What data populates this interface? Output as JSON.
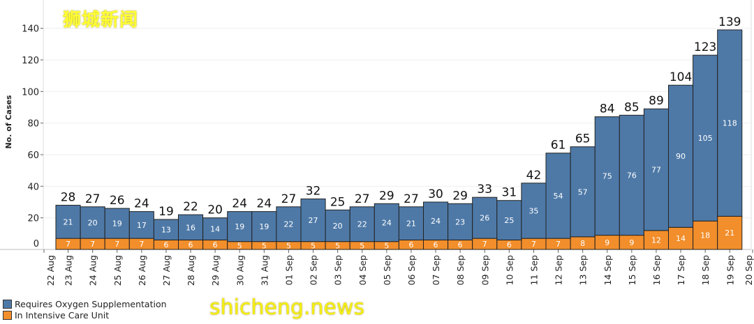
{
  "chart_data": {
    "type": "bar",
    "stacked": true,
    "ylabel": "No. of Cases",
    "xlabel": "",
    "ylim": [
      0,
      145
    ],
    "yticks": [
      0,
      20,
      40,
      60,
      80,
      100,
      120,
      140
    ],
    "grid": "horizontal",
    "legend_placement": "bottom-left",
    "axis_tick_labels": [
      "22 Aug",
      "23 Aug",
      "24 Aug",
      "25 Aug",
      "26 Aug",
      "27 Aug",
      "28 Aug",
      "29 Aug",
      "30 Aug",
      "31 Aug",
      "01 Sep",
      "02 Sep",
      "03 Sep",
      "04 Sep",
      "05 Sep",
      "06 Sep",
      "07 Sep",
      "08 Sep",
      "09 Sep",
      "10 Sep",
      "11 Sep",
      "12 Sep",
      "13 Sep",
      "14 Sep",
      "15 Sep",
      "16 Sep",
      "17 Sep",
      "18 Sep",
      "19 Sep",
      "20 Sep"
    ],
    "categories": [
      "23 Aug",
      "24 Aug",
      "25 Aug",
      "26 Aug",
      "27 Aug",
      "28 Aug",
      "29 Aug",
      "30 Aug",
      "31 Aug",
      "01 Sep",
      "02 Sep",
      "03 Sep",
      "04 Sep",
      "05 Sep",
      "06 Sep",
      "07 Sep",
      "08 Sep",
      "09 Sep",
      "10 Sep",
      "11 Sep",
      "12 Sep",
      "13 Sep",
      "14 Sep",
      "15 Sep",
      "16 Sep",
      "17 Sep",
      "18 Sep",
      "19 Sep"
    ],
    "series": [
      {
        "name": "In Intensive Care Unit",
        "color": "#f28e2b",
        "values": [
          7,
          7,
          7,
          7,
          6,
          6,
          6,
          5,
          5,
          5,
          5,
          5,
          5,
          5,
          6,
          6,
          6,
          7,
          6,
          7,
          7,
          8,
          9,
          9,
          12,
          14,
          18,
          21
        ]
      },
      {
        "name": "Requires Oxygen Supplementation",
        "color": "#4e79a7",
        "values": [
          21,
          20,
          19,
          17,
          13,
          16,
          14,
          19,
          19,
          22,
          27,
          20,
          22,
          24,
          21,
          24,
          23,
          26,
          25,
          35,
          54,
          57,
          75,
          76,
          77,
          90,
          105,
          118
        ]
      }
    ],
    "totals": [
      28,
      27,
      26,
      24,
      19,
      22,
      20,
      24,
      24,
      27,
      32,
      25,
      27,
      29,
      27,
      30,
      29,
      33,
      31,
      42,
      61,
      65,
      84,
      85,
      89,
      104,
      123,
      139
    ]
  },
  "legend": {
    "items": [
      {
        "label": "Requires Oxygen Supplementation",
        "color": "#4e79a7"
      },
      {
        "label": "In Intensive Care Unit",
        "color": "#f28e2b"
      }
    ]
  },
  "watermark": {
    "top": "狮城新闻",
    "bottom": "shicheng.news"
  }
}
